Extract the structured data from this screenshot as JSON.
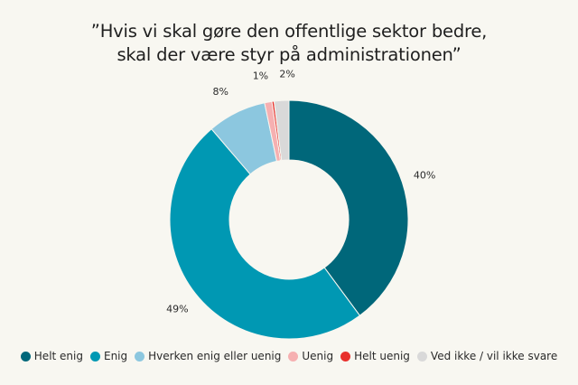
{
  "title": {
    "line1": "”Hvis vi skal gøre den offentlige sektor bedre,",
    "line2": "skal der være styr på administrationen”"
  },
  "chart_data": {
    "type": "pie",
    "donut": true,
    "categories": [
      "Helt enig",
      "Enig",
      "Hverken enig eller uenig",
      "Uenig",
      "Helt uenig",
      "Ved ikke / vil ikke svare"
    ],
    "values": [
      40,
      49,
      8,
      1,
      0.3,
      2
    ],
    "data_labels": [
      "40%",
      "49%",
      "8%",
      "1%",
      "",
      "2%"
    ],
    "colors": [
      "#00677a",
      "#0098b3",
      "#8cc7df",
      "#f6b0b1",
      "#e8302c",
      "#d9d9d9"
    ],
    "legend_position": "bottom"
  }
}
